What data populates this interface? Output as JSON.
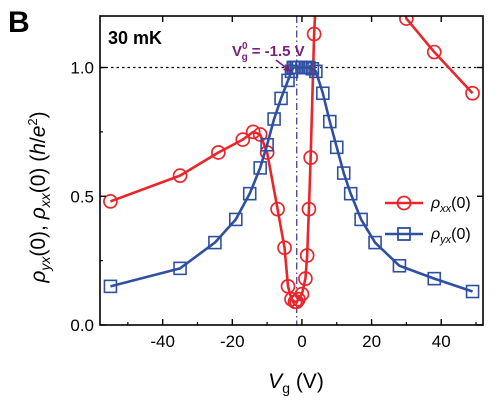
{
  "chart_data": {
    "type": "line",
    "panel_label": "B",
    "temperature_label": "30 mK",
    "annotation": {
      "text": "= -1.5 V",
      "symbol": "V",
      "superscript": "0",
      "subscript": "g"
    },
    "xlabel": {
      "main": "V",
      "sub": "g",
      "unit": " (V)"
    },
    "ylabel": "ρyx(0), ρxx(0) (h/e²)",
    "xlim": [
      -58,
      52
    ],
    "ylim": [
      0,
      1.2
    ],
    "xticks": [
      -40,
      -20,
      0,
      20,
      40
    ],
    "xtick_labels": [
      "-40",
      "-20",
      "0",
      "20",
      "40"
    ],
    "yticks": [
      0,
      0.5,
      1.0
    ],
    "ytick_labels": [
      "0.0",
      "0.5",
      "1.0"
    ],
    "reference_lines": {
      "horizontal_y": 1.0,
      "vertical_x": -1.5
    },
    "series": [
      {
        "name": "ρxx(0)",
        "legend": {
          "main": "ρ",
          "sub": "xx",
          "suffix": "(0)"
        },
        "color": "#e8262b",
        "marker": "circle",
        "x": [
          -55,
          -35,
          -24,
          -17,
          -14,
          -12,
          -10,
          -7,
          -5,
          -4,
          -3,
          -2,
          -1.5,
          -1,
          0,
          1,
          1.5,
          2,
          2.5,
          3.5
        ],
        "y": [
          0.48,
          0.58,
          0.67,
          0.72,
          0.75,
          0.74,
          0.67,
          0.45,
          0.3,
          0.15,
          0.1,
          0.09,
          0.09,
          0.1,
          0.12,
          0.18,
          0.27,
          0.45,
          0.65,
          1.13
        ]
      },
      {
        "name": "ρxx(0) high-V branch",
        "color": "#e8262b",
        "marker": "circle",
        "x": [
          30,
          38,
          49
        ],
        "y": [
          1.19,
          1.06,
          0.9
        ]
      },
      {
        "name": "ρyx(0)",
        "legend": {
          "main": "ρ",
          "sub": "yx",
          "suffix": "(0)"
        },
        "color": "#2f4fa2",
        "marker": "square",
        "x": [
          -55,
          -35,
          -25,
          -19,
          -15,
          -12,
          -10,
          -8,
          -6,
          -4,
          -3,
          -2.5,
          -2,
          -1.5,
          -1,
          0,
          1,
          2,
          3,
          4,
          6,
          8,
          10,
          12,
          14,
          17,
          21,
          28,
          38,
          49
        ],
        "y": [
          0.15,
          0.22,
          0.32,
          0.41,
          0.51,
          0.61,
          0.7,
          0.8,
          0.88,
          0.95,
          0.985,
          1.0,
          1.0,
          1.0,
          1.0,
          1.0,
          1.0,
          1.0,
          0.995,
          0.985,
          0.9,
          0.79,
          0.69,
          0.59,
          0.51,
          0.41,
          0.32,
          0.23,
          0.18,
          0.13
        ]
      }
    ]
  }
}
